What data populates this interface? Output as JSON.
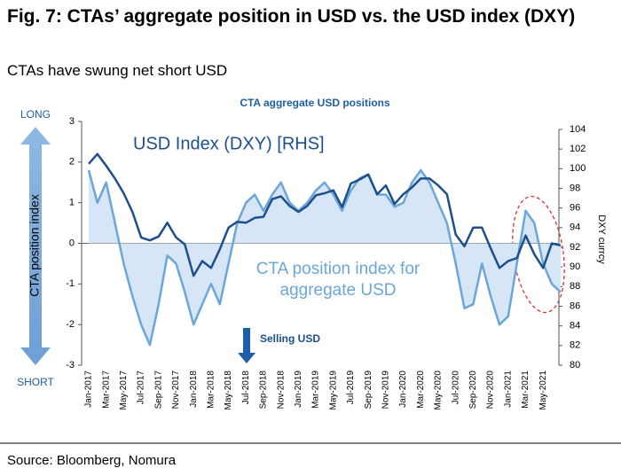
{
  "title": "Fig. 7: CTAs’ aggregate position in USD vs. the USD index (DXY)",
  "subtitle": "CTAs have swung net short USD",
  "source": "Source: Bloomberg, Nomura",
  "chart_data": {
    "type": "line",
    "title": "CTA aggregate USD positions",
    "categories": [
      "Jan-2017",
      null,
      "Mar-2017",
      null,
      "May-2017",
      null,
      "Jul-2017",
      null,
      "Sep-2017",
      null,
      "Nov-2017",
      null,
      "Jan-2018",
      null,
      "Mar-2018",
      null,
      "May-2018",
      null,
      "Jul-2018",
      null,
      "Sep-2018",
      null,
      "Nov-2018",
      null,
      "Jan-2019",
      null,
      "Mar-2019",
      null,
      "May-2019",
      null,
      "Jul-2019",
      null,
      "Sep-2019",
      null,
      "Nov-2019",
      null,
      "Jan-2020",
      null,
      "Mar-2020",
      null,
      "May-2020",
      null,
      "Jul-2020",
      null,
      "Sep-2020",
      null,
      "Nov-2020",
      null,
      "Jan-2021",
      null,
      "Mar-2021",
      null,
      "May-2021",
      null,
      null
    ],
    "series": [
      {
        "name": "USD Index (DXY) [RHS]",
        "color": "#1d4f8c",
        "axis": "y2",
        "values": [
          100.5,
          101.5,
          100.3,
          99.0,
          97.5,
          95.6,
          93.0,
          92.7,
          93.1,
          94.5,
          93.0,
          92.3,
          89.1,
          90.6,
          89.9,
          91.8,
          94.0,
          94.6,
          94.5,
          95.0,
          95.1,
          96.9,
          97.2,
          96.2,
          95.6,
          96.2,
          97.3,
          97.5,
          97.8,
          96.1,
          98.5,
          98.9,
          99.4,
          97.4,
          98.3,
          96.4,
          97.4,
          98.1,
          99.0,
          99.0,
          98.3,
          97.4,
          93.3,
          92.1,
          94.0,
          94.0,
          91.9,
          89.9,
          90.6,
          90.9,
          93.2,
          91.3,
          89.9,
          92.4,
          92.2
        ]
      },
      {
        "name": "CTA position index for aggregate USD",
        "color": "#6ca6d9",
        "fill": "#d6e6f7",
        "values": [
          1.8,
          1.0,
          1.5,
          0.5,
          -0.5,
          -1.3,
          -2.0,
          -2.5,
          -1.5,
          -0.3,
          -0.5,
          -1.2,
          -2.0,
          -1.5,
          -1.0,
          -1.5,
          -0.5,
          0.5,
          1.0,
          1.2,
          0.8,
          1.2,
          1.5,
          1.0,
          0.8,
          1.0,
          1.3,
          1.5,
          1.2,
          0.8,
          1.3,
          1.6,
          1.7,
          1.2,
          1.2,
          0.9,
          1.0,
          1.5,
          1.8,
          1.5,
          1.0,
          0.5,
          -0.5,
          -1.6,
          -1.5,
          -0.5,
          -1.3,
          -2.0,
          -1.8,
          -0.5,
          0.8,
          0.5,
          -0.5,
          -1.0,
          -1.2
        ]
      }
    ],
    "ylim": [
      -3,
      3
    ],
    "yticks": [
      -3,
      -2,
      -1,
      0,
      1,
      2,
      3
    ],
    "y2lim": [
      80,
      104
    ],
    "y2ticks": [
      80,
      82,
      84,
      86,
      88,
      90,
      92,
      94,
      96,
      98,
      100,
      102,
      104
    ],
    "ylabel": "CTA position index",
    "y2label": "DXY currcy",
    "annotations": {
      "long": "LONG",
      "short": "SHORT",
      "selling": "Selling USD"
    }
  }
}
